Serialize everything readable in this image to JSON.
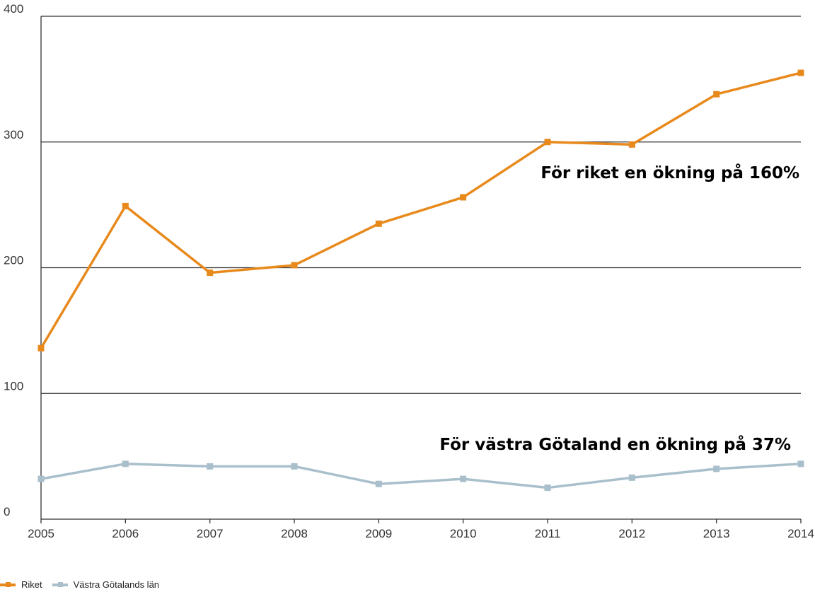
{
  "chart_data": {
    "type": "line",
    "x": [
      "2005",
      "2006",
      "2007",
      "2008",
      "2009",
      "2010",
      "2011",
      "2012",
      "2013",
      "2014"
    ],
    "series": [
      {
        "name": "Riket",
        "color": "#E8891C",
        "values": [
          136,
          249,
          196,
          202,
          235,
          256,
          300,
          298,
          338,
          355
        ]
      },
      {
        "name": "Västra Götalands län",
        "color": "#A9BFCB",
        "values": [
          32,
          44,
          42,
          42,
          28,
          32,
          25,
          33,
          40,
          44
        ]
      }
    ],
    "ylim": [
      0,
      400
    ],
    "yticks": [
      "0",
      "100",
      "200",
      "300",
      "400"
    ],
    "grid": true,
    "legend_position": "bottom-left",
    "annotations": {
      "riket": "För riket en ökning på 160%",
      "vastra": "För västra Götaland en ökning på 37%"
    }
  }
}
